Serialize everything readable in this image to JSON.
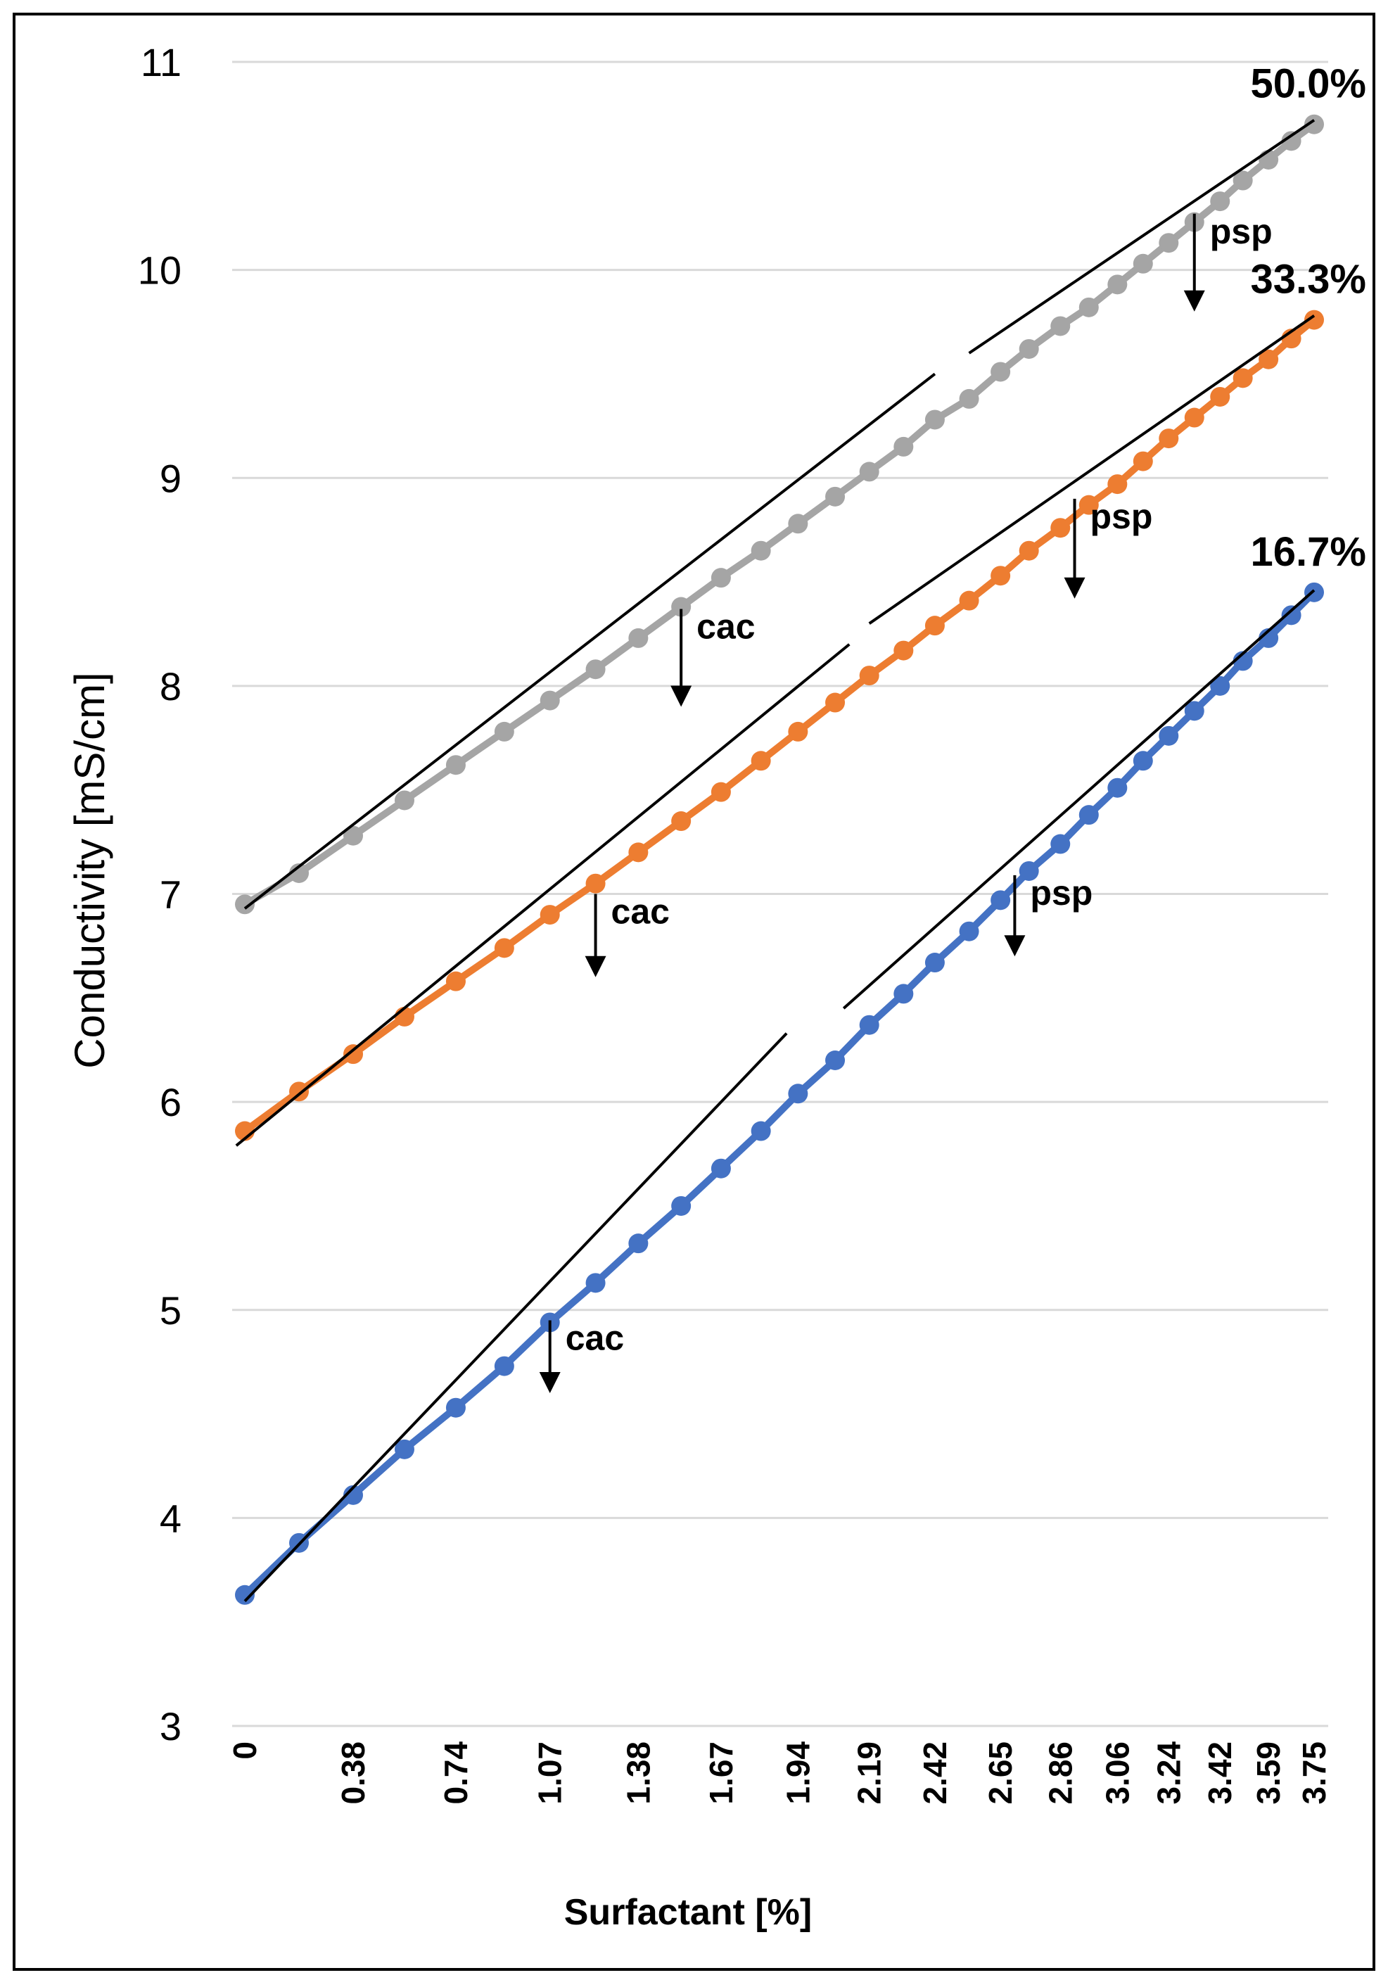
{
  "chart_data": {
    "type": "line",
    "title": "",
    "xlabel": "Surfactant [%]",
    "ylabel": "Conductivity [mS/cm]",
    "ylim": [
      3,
      11
    ],
    "yticks": [
      "3",
      "4",
      "5",
      "6",
      "7",
      "8",
      "9",
      "10",
      "11"
    ],
    "grid": "horizontal",
    "categories": [
      "0",
      "0.19",
      "0.38",
      "0.56",
      "0.74",
      "0.91",
      "1.07",
      "1.23",
      "1.38",
      "1.53",
      "1.67",
      "1.81",
      "1.94",
      "2.07",
      "2.19",
      "2.31",
      "2.42",
      "2.54",
      "2.65",
      "2.75",
      "2.86",
      "2.96",
      "3.06",
      "3.15",
      "3.24",
      "3.33",
      "3.42",
      "3.50",
      "3.59",
      "3.67",
      "3.75"
    ],
    "xtick_labels": [
      "0",
      "0.38",
      "0.74",
      "1.07",
      "1.38",
      "1.67",
      "1.94",
      "2.19",
      "2.42",
      "2.65",
      "2.86",
      "3.06",
      "3.24",
      "3.42",
      "3.59",
      "3.75"
    ],
    "series": [
      {
        "name": "50.0%",
        "color": "#a5a5a5",
        "values": [
          6.95,
          7.1,
          7.28,
          7.45,
          7.62,
          7.78,
          7.93,
          8.08,
          8.23,
          8.38,
          8.52,
          8.65,
          8.78,
          8.91,
          9.03,
          9.15,
          9.28,
          9.38,
          9.51,
          9.62,
          9.73,
          9.82,
          9.93,
          10.03,
          10.13,
          10.23,
          10.33,
          10.43,
          10.53,
          10.62,
          10.7
        ]
      },
      {
        "name": "33.3%",
        "color": "#ed7d31",
        "values": [
          5.86,
          6.05,
          6.23,
          6.41,
          6.58,
          6.74,
          6.9,
          7.05,
          7.2,
          7.35,
          7.49,
          7.64,
          7.78,
          7.92,
          8.05,
          8.17,
          8.29,
          8.41,
          8.53,
          8.65,
          8.76,
          8.87,
          8.97,
          9.08,
          9.19,
          9.29,
          9.39,
          9.48,
          9.57,
          9.67,
          9.76
        ]
      },
      {
        "name": "16.7%",
        "color": "#4472c4",
        "values": [
          3.63,
          3.88,
          4.11,
          4.33,
          4.53,
          4.73,
          4.94,
          5.13,
          5.32,
          5.5,
          5.68,
          5.86,
          6.04,
          6.2,
          6.37,
          6.52,
          6.67,
          6.82,
          6.97,
          7.11,
          7.24,
          7.38,
          7.51,
          7.64,
          7.76,
          7.88,
          8.0,
          8.12,
          8.23,
          8.34,
          8.45
        ]
      }
    ],
    "fit_lines": [
      {
        "series": "50.0%",
        "segment": "pre-cac",
        "x": [
          0,
          2.42
        ],
        "y": [
          6.93,
          9.5
        ]
      },
      {
        "series": "50.0%",
        "segment": "post",
        "x": [
          2.54,
          3.75
        ],
        "y": [
          9.6,
          10.72
        ]
      },
      {
        "series": "33.3%",
        "segment": "pre-cac",
        "x": [
          -0.03,
          2.12
        ],
        "y": [
          5.79,
          8.2
        ]
      },
      {
        "series": "33.3%",
        "segment": "post",
        "x": [
          2.19,
          3.75
        ],
        "y": [
          8.3,
          9.78
        ]
      },
      {
        "series": "16.7%",
        "segment": "pre-cac",
        "x": [
          0,
          1.9
        ],
        "y": [
          3.6,
          6.33
        ]
      },
      {
        "series": "16.7%",
        "segment": "post",
        "x": [
          2.1,
          3.75
        ],
        "y": [
          6.45,
          8.46
        ]
      }
    ],
    "annotations": [
      {
        "text": "cac",
        "series": "50.0%",
        "x": 1.53,
        "y_from": 8.37,
        "y_to": 7.9
      },
      {
        "text": "psp",
        "series": "50.0%",
        "x": 3.33,
        "y_from": 10.27,
        "y_to": 9.8
      },
      {
        "text": "cac",
        "series": "33.3%",
        "x": 1.23,
        "y_from": 7.0,
        "y_to": 6.6
      },
      {
        "text": "psp",
        "series": "33.3%",
        "x": 2.91,
        "y_from": 8.9,
        "y_to": 8.42
      },
      {
        "text": "cac",
        "series": "16.7%",
        "x": 1.07,
        "y_from": 4.95,
        "y_to": 4.6
      },
      {
        "text": "psp",
        "series": "16.7%",
        "x": 2.7,
        "y_from": 7.09,
        "y_to": 6.7
      }
    ]
  }
}
